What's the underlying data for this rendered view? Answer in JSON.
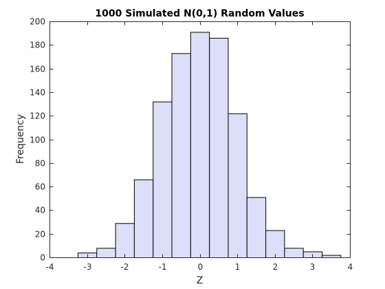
{
  "chart_data": {
    "type": "bar",
    "title": "1000 Simulated N(0,1) Random Values",
    "xlabel": "Z",
    "ylabel": "Frequency",
    "xlim": [
      -4,
      4
    ],
    "ylim": [
      0,
      200
    ],
    "xticks": [
      -4,
      -3,
      -2,
      -1,
      0,
      1,
      2,
      3,
      4
    ],
    "yticks": [
      0,
      20,
      40,
      60,
      80,
      100,
      120,
      140,
      160,
      180,
      200
    ],
    "bins": [
      {
        "x0": -3.25,
        "x1": -2.75,
        "value": 4
      },
      {
        "x0": -2.75,
        "x1": -2.25,
        "value": 8
      },
      {
        "x0": -2.25,
        "x1": -1.75,
        "value": 29
      },
      {
        "x0": -1.75,
        "x1": -1.25,
        "value": 66
      },
      {
        "x0": -1.25,
        "x1": -0.75,
        "value": 132
      },
      {
        "x0": -0.75,
        "x1": -0.25,
        "value": 173
      },
      {
        "x0": -0.25,
        "x1": 0.25,
        "value": 191
      },
      {
        "x0": 0.25,
        "x1": 0.75,
        "value": 186
      },
      {
        "x0": 0.75,
        "x1": 1.25,
        "value": 122
      },
      {
        "x0": 1.25,
        "x1": 1.75,
        "value": 51
      },
      {
        "x0": 1.75,
        "x1": 2.25,
        "value": 23
      },
      {
        "x0": 2.25,
        "x1": 2.75,
        "value": 8
      },
      {
        "x0": 2.75,
        "x1": 3.25,
        "value": 5
      },
      {
        "x0": 3.25,
        "x1": 3.75,
        "value": 2
      }
    ],
    "grid": false,
    "bar_fill": "#dcdefa",
    "bar_edge": "#000000",
    "axis_color": "#262626"
  }
}
